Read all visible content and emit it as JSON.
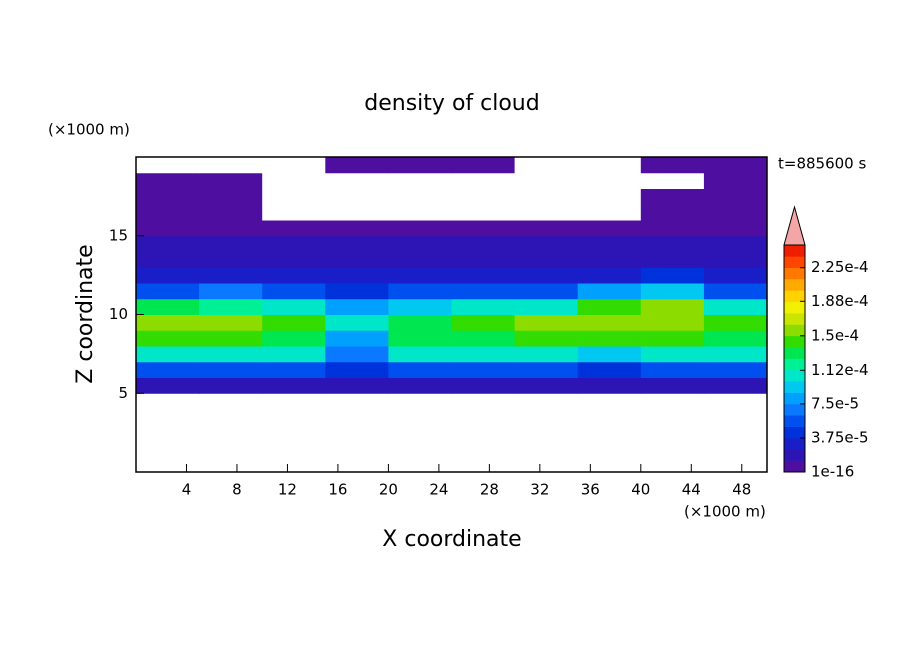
{
  "chart_data": {
    "type": "contour",
    "title": "density of cloud",
    "ylabel_unit": "(×1000 m)",
    "xlabel_unit": "(×1000 m)",
    "time_label": "t=885600 s",
    "ylabel": "Z coordinate",
    "xlabel": "X coordinate",
    "xlim": [
      0,
      50
    ],
    "ylim": [
      0,
      20
    ],
    "xticks": [
      4,
      8,
      12,
      16,
      20,
      24,
      28,
      32,
      36,
      40,
      44,
      48
    ],
    "yticks": [
      5,
      10,
      15
    ],
    "x": [
      2.5,
      7.5,
      12.5,
      17.5,
      22.5,
      27.5,
      32.5,
      37.5,
      42.5,
      47.5
    ],
    "y": [
      0.5,
      1.5,
      2.5,
      3.5,
      4.5,
      5.5,
      6.5,
      7.5,
      8.5,
      9.5,
      10.5,
      11.5,
      12.5,
      13.5,
      14.5,
      15.5,
      16.5,
      17.5,
      18.5,
      19.5
    ],
    "z": [
      [
        0,
        0,
        0,
        0,
        0,
        0,
        0,
        0,
        0,
        0
      ],
      [
        0,
        0,
        0,
        0,
        0,
        0,
        0,
        0,
        0,
        0
      ],
      [
        0,
        0,
        0,
        0,
        0,
        0,
        0,
        0,
        0,
        0
      ],
      [
        0,
        0,
        0,
        0,
        0,
        0,
        0,
        0,
        0,
        0
      ],
      [
        0,
        0,
        0,
        0,
        0,
        0,
        0,
        0,
        0,
        0
      ],
      [
        2e-05,
        2e-05,
        2e-05,
        2e-05,
        2e-05,
        2e-05,
        2e-05,
        2e-05,
        2e-05,
        2e-05
      ],
      [
        5e-05,
        5e-05,
        5e-05,
        4e-05,
        5e-05,
        5e-05,
        5e-05,
        4e-05,
        5e-05,
        5e-05
      ],
      [
        0.00011,
        0.00011,
        0.0001,
        7e-05,
        0.0001,
        0.00011,
        0.00011,
        9e-05,
        0.00011,
        0.00011
      ],
      [
        0.00014,
        0.00014,
        0.00013,
        8e-05,
        0.00013,
        0.00013,
        0.00014,
        0.00014,
        0.00014,
        0.00013
      ],
      [
        0.00016,
        0.00016,
        0.00014,
        0.0001,
        0.00013,
        0.00014,
        0.00015,
        0.00016,
        0.00016,
        0.00014
      ],
      [
        0.00013,
        0.00012,
        0.00011,
        8e-05,
        9e-05,
        0.0001,
        0.00011,
        0.00014,
        0.00015,
        0.0001
      ],
      [
        6e-05,
        7e-05,
        6e-05,
        4e-05,
        5e-05,
        5e-05,
        6e-05,
        8e-05,
        9e-05,
        5e-05
      ],
      [
        3e-05,
        3e-05,
        3e-05,
        2.6e-05,
        3e-05,
        3e-05,
        3e-05,
        3e-05,
        4e-05,
        3e-05
      ],
      [
        1.8e-05,
        1.8e-05,
        1.8e-05,
        1.8e-05,
        1.8e-05,
        1.8e-05,
        1.8e-05,
        1.8e-05,
        1.8e-05,
        1.8e-05
      ],
      [
        1.3e-05,
        1.3e-05,
        1.3e-05,
        1.3e-05,
        1.3e-05,
        1.3e-05,
        1.3e-05,
        1.3e-05,
        1.3e-05,
        1.3e-05
      ],
      [
        6e-06,
        6e-06,
        6e-06,
        6e-06,
        6e-06,
        6e-06,
        6e-06,
        6e-06,
        6e-06,
        6e-06
      ],
      [
        5e-06,
        5e-06,
        0,
        0,
        0,
        0,
        0,
        0,
        5e-06,
        5e-06
      ],
      [
        5e-06,
        5e-06,
        0,
        0,
        0,
        0,
        0,
        0,
        5e-06,
        5e-06
      ],
      [
        5e-06,
        5e-06,
        0,
        0,
        0,
        0,
        0,
        0,
        0,
        5e-06
      ],
      [
        0,
        0,
        0,
        5e-06,
        5e-06,
        5e-06,
        0,
        0,
        5e-06,
        5e-06
      ]
    ],
    "levels": [
      1e-16,
      1.25e-05,
      2.5e-05,
      3.75e-05,
      5e-05,
      6.25e-05,
      7.5e-05,
      8.75e-05,
      0.0001,
      0.0001125,
      0.000125,
      0.0001375,
      0.00015,
      0.0001625,
      0.000175,
      0.0001875,
      0.0002,
      0.0002125,
      0.000225,
      0.0002375,
      0.00025
    ],
    "colors": [
      "#4e0fa0",
      "#2d14b4",
      "#1a1ec8",
      "#0032dc",
      "#0050f0",
      "#0a78ff",
      "#00a0ff",
      "#00c8f0",
      "#00e6c8",
      "#00f096",
      "#00e650",
      "#32dc00",
      "#8cdc00",
      "#c8e600",
      "#f0f000",
      "#ffd200",
      "#ffaa00",
      "#ff7800",
      "#ff4600",
      "#f01e00"
    ],
    "over_color": "#f4a6a6",
    "colorbar_ticks": [
      {
        "value": 1e-16,
        "label": "1e-16"
      },
      {
        "value": 3.75e-05,
        "label": "3.75e-5"
      },
      {
        "value": 7.5e-05,
        "label": "7.5e-5"
      },
      {
        "value": 0.000112,
        "label": "1.12e-4"
      },
      {
        "value": 0.00015,
        "label": "1.5e-4"
      },
      {
        "value": 0.000188,
        "label": "1.88e-4"
      },
      {
        "value": 0.000225,
        "label": "2.25e-4"
      }
    ]
  }
}
